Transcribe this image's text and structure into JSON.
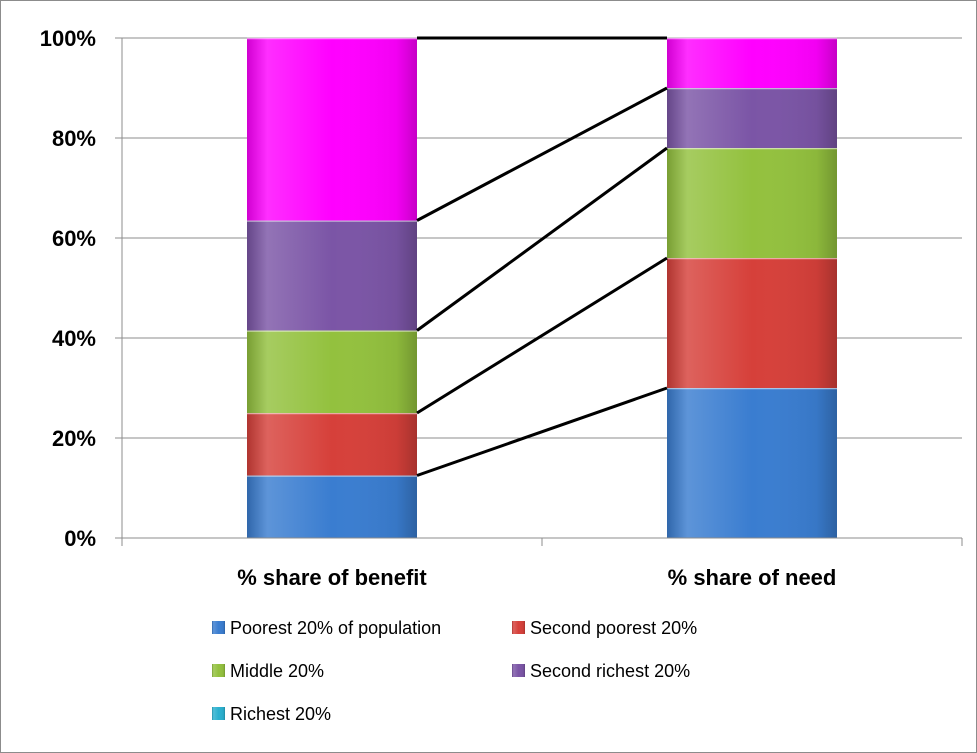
{
  "chart_data": {
    "type": "bar",
    "stacked": true,
    "categories": [
      "% share of benefit",
      "% share of need"
    ],
    "series": [
      {
        "name": "Poorest 20% of population",
        "values": [
          12.5,
          30
        ],
        "color": "#3a7dd0"
      },
      {
        "name": "Second poorest 20%",
        "values": [
          12.5,
          26
        ],
        "color": "#d6403a"
      },
      {
        "name": "Middle 20%",
        "values": [
          16.5,
          22
        ],
        "color": "#93c13e"
      },
      {
        "name": "Second richest 20%",
        "values": [
          22,
          12
        ],
        "color": "#7b55a6"
      },
      {
        "name": "Richest 20%",
        "values": [
          36.5,
          10
        ],
        "color": "#ff00ff",
        "legend_color": "#2ab0cf"
      }
    ],
    "yticks": [
      "0%",
      "20%",
      "40%",
      "60%",
      "80%",
      "100%"
    ],
    "ylim": [
      0,
      100
    ],
    "grid": true,
    "legend_position": "bottom",
    "connector_lines": true
  }
}
